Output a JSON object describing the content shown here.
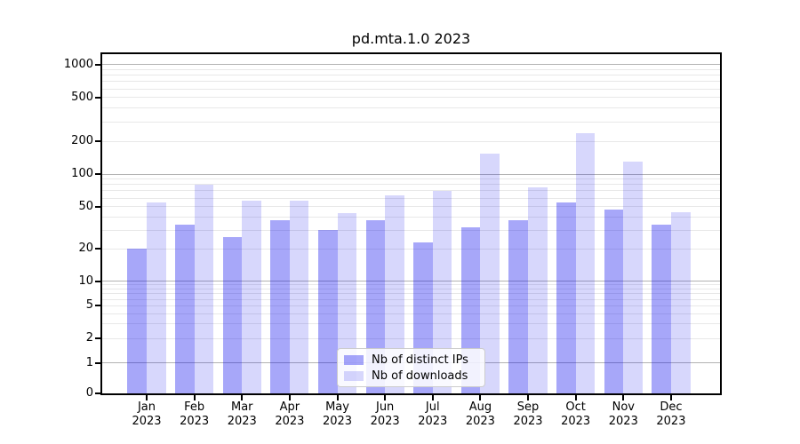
{
  "window": {
    "title": "pd.mta.1.0 2023"
  },
  "chart_data": {
    "type": "bar",
    "title": "pd.mta.1.0 2023",
    "categories": [
      "Jan",
      "Feb",
      "Mar",
      "Apr",
      "May",
      "Jun",
      "Jul",
      "Aug",
      "Sep",
      "Oct",
      "Nov",
      "Dec"
    ],
    "year_label": "2023",
    "series": [
      {
        "name": "Nb of distinct IPs",
        "values": [
          20,
          34,
          26,
          37,
          30,
          37,
          23,
          32,
          37,
          55,
          47,
          34
        ]
      },
      {
        "name": "Nb of downloads",
        "values": [
          55,
          80,
          57,
          57,
          43,
          63,
          70,
          155,
          75,
          237,
          130,
          44
        ]
      }
    ],
    "xlabel": "",
    "ylabel": "",
    "y_ticks": [
      0,
      1,
      2,
      5,
      10,
      20,
      50,
      100,
      200,
      500,
      1000
    ],
    "y_scale": "log-with-zero",
    "ylim": [
      0,
      1244
    ],
    "grid": true,
    "legend_position": "lower center"
  },
  "legend": {
    "items": [
      {
        "label": "Nb of distinct IPs",
        "color": "rgba(0,0,238,0.345)"
      },
      {
        "label": "Nb of downloads",
        "color": "rgba(0,0,238,0.155)"
      }
    ]
  },
  "colors": {
    "bar_distinct_ips": "rgba(0,0,238,0.345)",
    "bar_downloads": "rgba(0,0,238,0.155)",
    "bar_distinct_ips_hex": "#a8a8f9",
    "bar_downloads_hex": "#d8d8fc",
    "grid_major": "#b3b3b3",
    "grid_minor": "#e8e8e8",
    "frame": "#000000",
    "background": "#ffffff"
  }
}
